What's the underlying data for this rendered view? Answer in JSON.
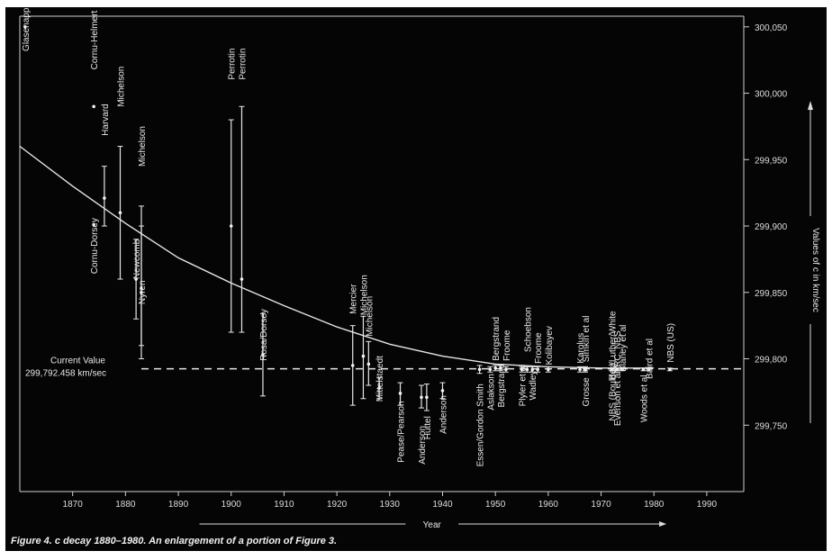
{
  "chart_data": {
    "type": "scatter",
    "caption": "Figure 4. c decay 1880–1980. An enlargement of a portion of Figure 3.",
    "xlabel": "Year",
    "ylabel": "Values of c in km/sec",
    "xlim": [
      1860,
      1997
    ],
    "ylim": [
      299700,
      300058
    ],
    "x_ticks": [
      1870,
      1880,
      1890,
      1900,
      1910,
      1920,
      1930,
      1940,
      1950,
      1960,
      1970,
      1980,
      1990
    ],
    "y_ticks": [
      {
        "value": 299750,
        "label": "299,750"
      },
      {
        "value": 299800,
        "label": "299,800"
      },
      {
        "value": 299850,
        "label": "299,850"
      },
      {
        "value": 299900,
        "label": "299,900"
      },
      {
        "value": 299950,
        "label": "299,950"
      },
      {
        "value": 300000,
        "label": "300,000"
      },
      {
        "value": 300050,
        "label": "300,050"
      }
    ],
    "current_value": {
      "value": 299792.458,
      "label_line1": "Current Value",
      "label_line2": "299,792.458 km/sec"
    },
    "curve": [
      {
        "x": 1860,
        "y": 299960
      },
      {
        "x": 1870,
        "y": 299930
      },
      {
        "x": 1880,
        "y": 299902
      },
      {
        "x": 1890,
        "y": 299876
      },
      {
        "x": 1900,
        "y": 299857
      },
      {
        "x": 1910,
        "y": 299840
      },
      {
        "x": 1920,
        "y": 299824
      },
      {
        "x": 1930,
        "y": 299811
      },
      {
        "x": 1940,
        "y": 299802
      },
      {
        "x": 1950,
        "y": 299796
      },
      {
        "x": 1960,
        "y": 299794
      },
      {
        "x": 1970,
        "y": 299793
      },
      {
        "x": 1980,
        "y": 299793
      }
    ],
    "measurements": [
      {
        "name": "Glasenapp",
        "x": 1861,
        "y": 300050,
        "low": null,
        "high": null,
        "label_y": 300048
      },
      {
        "name": "Cornu-Helmert",
        "x": 1874,
        "y": 299990,
        "low": null,
        "high": null,
        "label_y": 300040
      },
      {
        "name": "Harvard",
        "x": 1876,
        "y": 299921,
        "low": 299900,
        "high": 299945,
        "label_y": 299980
      },
      {
        "name": "Michelson",
        "x": 1879,
        "y": 299910,
        "low": 299860,
        "high": 299960,
        "label_y": 300005
      },
      {
        "name": "Cornu-Dorsey",
        "x": 1874,
        "y": 299901,
        "low": null,
        "high": null,
        "label_y": 299885
      },
      {
        "name": "Newcomb",
        "x": 1882,
        "y": 299860,
        "low": 299830,
        "high": 299890,
        "label_y": 299875
      },
      {
        "name": "Nyren",
        "x": 1883,
        "y": 299850,
        "low": 299800,
        "high": 299900,
        "label_y": 299850
      },
      {
        "name": "Michelson",
        "x": 1883,
        "y": 299853,
        "low": 299810,
        "high": 299915,
        "label_y": 299960
      },
      {
        "name": "Perrotin",
        "x": 1900,
        "y": 299900,
        "low": 299820,
        "high": 299980,
        "label_y": 300022
      },
      {
        "name": "Perrotin",
        "x": 1902,
        "y": 299860,
        "low": 299820,
        "high": 299990,
        "label_y": 300022
      },
      {
        "name": "Rosa/Dorsey",
        "x": 1906,
        "y": 299803,
        "low": 299772,
        "high": 299834,
        "label_y": 299818
      },
      {
        "name": "Mercier",
        "x": 1923,
        "y": 299795,
        "low": 299765,
        "high": 299825,
        "label_y": 299845
      },
      {
        "name": "Michelson",
        "x": 1925,
        "y": 299802,
        "low": 299770,
        "high": 299832,
        "label_y": 299848
      },
      {
        "name": "Michelson",
        "x": 1926,
        "y": 299796,
        "low": 299780,
        "high": 299813,
        "label_y": 299832
      },
      {
        "name": "Mittelstaedt",
        "x": 1928,
        "y": 299778,
        "low": 299770,
        "high": 299786,
        "label_y": 299785
      },
      {
        "name": "Pease/Pearson",
        "x": 1932,
        "y": 299774,
        "low": 299765,
        "high": 299782,
        "label_y": 299745
      },
      {
        "name": "Anderson",
        "x": 1936,
        "y": 299771,
        "low": 299763,
        "high": 299780,
        "label_y": 299735
      },
      {
        "name": "Huttel",
        "x": 1937,
        "y": 299771,
        "low": 299761,
        "high": 299781,
        "label_y": 299748
      },
      {
        "name": "Anderson",
        "x": 1940,
        "y": 299776,
        "low": 299770,
        "high": 299782,
        "label_y": 299758
      },
      {
        "name": "Essen/Gordon Smith",
        "x": 1947,
        "y": 299792,
        "low": 299789,
        "high": 299795,
        "label_y": 299750
      },
      {
        "name": "Aslakson",
        "x": 1949,
        "y": 299792,
        "low": 299790,
        "high": 299794,
        "label_y": 299775
      },
      {
        "name": "Bergstrand",
        "x": 1950,
        "y": 299793,
        "low": 299791,
        "high": 299795,
        "label_y": 299815
      },
      {
        "name": "Bergstrand",
        "x": 1951,
        "y": 299793,
        "low": 299791,
        "high": 299795,
        "label_y": 299780
      },
      {
        "name": "Froome",
        "x": 1952,
        "y": 299792,
        "low": 299790,
        "high": 299794,
        "label_y": 299810
      },
      {
        "name": "Plyler et al",
        "x": 1955,
        "y": 299792,
        "low": 299790,
        "high": 299794,
        "label_y": 299780
      },
      {
        "name": "Schoebson",
        "x": 1956,
        "y": 299792,
        "low": 299790,
        "high": 299794,
        "label_y": 299822
      },
      {
        "name": "Wadley",
        "x": 1957,
        "y": 299792,
        "low": 299790,
        "high": 299794,
        "label_y": 299780
      },
      {
        "name": "Froome",
        "x": 1958,
        "y": 299792,
        "low": 299790,
        "high": 299794,
        "label_y": 299808
      },
      {
        "name": "Kolibayev",
        "x": 1960,
        "y": 299792,
        "low": 299790,
        "high": 299794,
        "label_y": 299810
      },
      {
        "name": "Grosse",
        "x": 1967,
        "y": 299792,
        "low": 299790,
        "high": 299794,
        "label_y": 299775
      },
      {
        "name": "Karolus",
        "x": 1966,
        "y": 299792,
        "low": 299790,
        "high": 299794,
        "label_y": 299808
      },
      {
        "name": "Simkin et al",
        "x": 1967,
        "y": 299792,
        "low": 299791,
        "high": 299793,
        "label_y": 299815
      },
      {
        "name": "NBS (Boulder)",
        "x": 1972,
        "y": 299792,
        "low": 299791,
        "high": 299793,
        "label_y": 299775
      },
      {
        "name": "Bay/Luther/White",
        "x": 1972,
        "y": 299792,
        "low": 299791,
        "high": 299793,
        "label_y": 299810
      },
      {
        "name": "Evenson et al",
        "x": 1973,
        "y": 299792,
        "low": 299791,
        "high": 299793,
        "label_y": 299770
      },
      {
        "name": "NRC, NBS",
        "x": 1973,
        "y": 299792,
        "low": 299791,
        "high": 299793,
        "label_y": 299805
      },
      {
        "name": "Blaney et al",
        "x": 1974,
        "y": 299792,
        "low": 299791,
        "high": 299793,
        "label_y": 299808
      },
      {
        "name": "Woods et al",
        "x": 1978,
        "y": 299792,
        "low": 299791,
        "high": 299793,
        "label_y": 299770
      },
      {
        "name": "Baird et al",
        "x": 1979,
        "y": 299792,
        "low": 299791,
        "high": 299793,
        "label_y": 299800
      },
      {
        "name": "NBS (US)",
        "x": 1983,
        "y": 299792,
        "low": 299791,
        "high": 299793,
        "label_y": 299812
      }
    ]
  }
}
